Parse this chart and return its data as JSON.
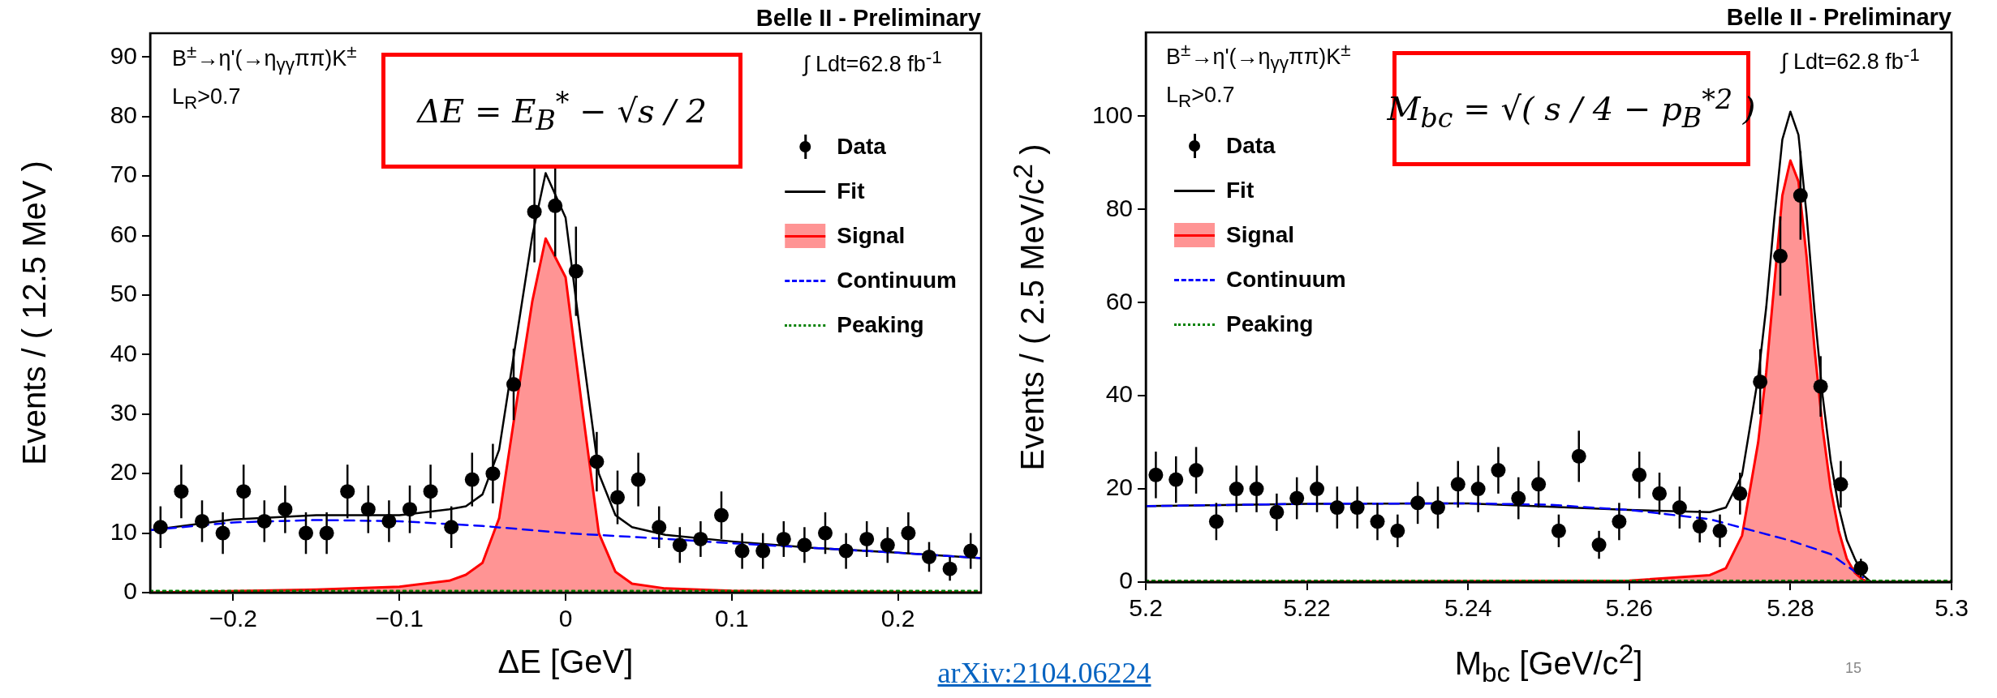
{
  "chart_data": [
    {
      "type": "line",
      "title": "Belle II - Preliminary",
      "xlabel": "ΔE [GeV]",
      "ylabel": "Events / ( 12.5 MeV )",
      "xlim": [
        -0.25,
        0.25
      ],
      "xticks": [
        {
          "value": -0.2,
          "label": "−0.2"
        },
        {
          "value": -0.1,
          "label": "−0.1"
        },
        0,
        0.1,
        0.2
      ],
      "ylim": [
        0,
        94
      ],
      "yticks": [
        0,
        10,
        20,
        30,
        40,
        50,
        60,
        70,
        80,
        90
      ],
      "legend": "top right",
      "annotations": [
        "B$^{±}$→η'(→η$_{γγ}$ππ)K$^{±}$",
        "L$_{R}$>0.7",
        "∫ Ldt=62.8 fb$^{-1}$",
        "ΔE =  E$_{B}$$^{*}$ − √s / 2",
        "arXiv:2104.06224"
      ],
      "series": [
        {
          "name": "Data",
          "type": "scatter",
          "marker": "circle",
          "color": "#000000",
          "x": [
            -0.24375,
            -0.23125,
            -0.21875,
            -0.20625,
            -0.19375,
            -0.18125,
            -0.16875,
            -0.15625,
            -0.14375,
            -0.13125,
            -0.11875,
            -0.10625,
            -0.09375,
            -0.08125,
            -0.06875,
            -0.05625,
            -0.04375,
            -0.03125,
            -0.01875,
            -0.00625,
            0.00625,
            0.01875,
            0.03125,
            0.04375,
            0.05625,
            0.06875,
            0.08125,
            0.09375,
            0.10625,
            0.11875,
            0.13125,
            0.14375,
            0.15625,
            0.16875,
            0.18125,
            0.19375,
            0.20625,
            0.21875,
            0.23125,
            0.24375
          ],
          "values": [
            11,
            17,
            12,
            10,
            17,
            12,
            14,
            10,
            10,
            17,
            14,
            12,
            14,
            17,
            11,
            19,
            20,
            35,
            64,
            65,
            54,
            22,
            16,
            19,
            11,
            8,
            9,
            13,
            7,
            7,
            9,
            8,
            10,
            7,
            9,
            8,
            10,
            6,
            4,
            7
          ],
          "errors": [
            3.5,
            4.5,
            3.5,
            3.5,
            4.5,
            3.5,
            4,
            3.5,
            3.5,
            4.5,
            4,
            3.5,
            4,
            4.5,
            3.5,
            4.5,
            5,
            6,
            8.5,
            8.5,
            7.5,
            5,
            4.5,
            4.5,
            3.5,
            3,
            3,
            4,
            3,
            3,
            3,
            3,
            3.5,
            3,
            3,
            3,
            3.5,
            2.5,
            2,
            3
          ]
        },
        {
          "name": "Fit",
          "type": "line",
          "color": "#000000",
          "x": [
            -0.25,
            -0.2,
            -0.15,
            -0.1,
            -0.07,
            -0.06,
            -0.05,
            -0.04,
            -0.03,
            -0.02,
            -0.012,
            0,
            0.01,
            0.02,
            0.03,
            0.04,
            0.06,
            0.1,
            0.15,
            0.2,
            0.25
          ],
          "values": [
            10.5,
            12.3,
            13,
            13,
            14,
            14.5,
            16.5,
            24,
            42,
            60,
            70.5,
            63,
            41,
            20,
            13,
            11,
            9.7,
            8.6,
            7.5,
            6.7,
            5.8
          ]
        },
        {
          "name": "Signal",
          "type": "area",
          "color": "#ff0000",
          "x": [
            -0.25,
            -0.15,
            -0.1,
            -0.07,
            -0.06,
            -0.05,
            -0.04,
            -0.03,
            -0.02,
            -0.012,
            0,
            0.01,
            0.02,
            0.03,
            0.04,
            0.06,
            0.1,
            0.25
          ],
          "values": [
            0,
            0.5,
            1,
            2,
            3,
            5,
            12.5,
            31,
            49,
            59.5,
            53,
            31,
            10,
            3.5,
            1.5,
            0.7,
            0.3,
            0
          ]
        },
        {
          "name": "Continuum",
          "type": "line",
          "line_style": "dashed",
          "color": "#0000ff",
          "x": [
            -0.25,
            -0.2,
            -0.15,
            -0.1,
            -0.05,
            0,
            0.05,
            0.1,
            0.15,
            0.2,
            0.25
          ],
          "values": [
            10.5,
            11.8,
            12.2,
            12,
            11.2,
            10,
            9.2,
            8.3,
            7.5,
            6.7,
            5.8
          ]
        },
        {
          "name": "Peaking",
          "type": "line",
          "line_style": "dotted",
          "color": "#008000",
          "x": [
            -0.25,
            0.25
          ],
          "values": [
            0.3,
            0.3
          ]
        }
      ]
    },
    {
      "type": "line",
      "title": "Belle II - Preliminary",
      "xlabel": "M$_{bc}$ [GeV/c$^{2}$]",
      "ylabel": "Events / ( 2.5 MeV/c$^{2}$ )",
      "xlim": [
        5.2,
        5.3
      ],
      "xticks": [
        5.2,
        5.22,
        5.24,
        5.26,
        5.28,
        5.3
      ],
      "ylim": [
        0,
        118
      ],
      "yticks": [
        0,
        20,
        40,
        60,
        80,
        100
      ],
      "legend": "top left",
      "annotations": [
        "B$^{±}$→η'(→η$_{γγ}$ππ)K$^{±}$",
        "L$_{R}$>0.7",
        "∫ Ldt=62.8 fb$^{-1}$",
        "M$_{bc}$ = √( s / 4 −  p$_{B}$$^{*2}$ )",
        "15"
      ],
      "series": [
        {
          "name": "Data",
          "type": "scatter",
          "marker": "circle",
          "color": "#000000",
          "x": [
            5.20125,
            5.20375,
            5.20625,
            5.20875,
            5.21125,
            5.21375,
            5.21625,
            5.21875,
            5.22125,
            5.22375,
            5.22625,
            5.22875,
            5.23125,
            5.23375,
            5.23625,
            5.23875,
            5.24125,
            5.24375,
            5.24625,
            5.24875,
            5.25125,
            5.25375,
            5.25625,
            5.25875,
            5.26125,
            5.26375,
            5.26625,
            5.26875,
            5.27125,
            5.27375,
            5.27625,
            5.27875,
            5.28125,
            5.28375,
            5.28625,
            5.28875
          ],
          "values": [
            23,
            22,
            24,
            13,
            20,
            20,
            15,
            18,
            20,
            16,
            16,
            13,
            11,
            17,
            16,
            21,
            20,
            24,
            18,
            21,
            11,
            27,
            8,
            13,
            23,
            19,
            16,
            12,
            11,
            19,
            43,
            70,
            83,
            42,
            21,
            3
          ],
          "errors": [
            5,
            5,
            5,
            4,
            5,
            5,
            4,
            4.5,
            5,
            4.5,
            4.5,
            4,
            3.5,
            4.5,
            4.5,
            5,
            5,
            5,
            4.5,
            5,
            3.5,
            5.5,
            3,
            4,
            5,
            4.5,
            4.5,
            3.5,
            3.5,
            4.5,
            7,
            8.5,
            9.5,
            6.5,
            5,
            2
          ]
        },
        {
          "name": "Fit",
          "type": "line",
          "color": "#000000",
          "x": [
            5.2,
            5.22,
            5.24,
            5.26,
            5.27,
            5.272,
            5.274,
            5.276,
            5.277,
            5.278,
            5.279,
            5.28,
            5.281,
            5.282,
            5.283,
            5.284,
            5.285,
            5.286,
            5.287,
            5.288,
            5.289,
            5.29,
            5.3
          ],
          "values": [
            16.3,
            16.8,
            16.9,
            15.5,
            15,
            16,
            23,
            44,
            59,
            78,
            95,
            101,
            96,
            79,
            58,
            40,
            26,
            16,
            9,
            5,
            1.5,
            0,
            0
          ]
        },
        {
          "name": "Signal",
          "type": "area",
          "color": "#ff0000",
          "x": [
            5.2,
            5.26,
            5.27,
            5.272,
            5.274,
            5.276,
            5.277,
            5.278,
            5.279,
            5.28,
            5.281,
            5.282,
            5.283,
            5.284,
            5.285,
            5.286,
            5.287,
            5.288,
            5.289,
            5.29,
            5.3
          ],
          "values": [
            0,
            0.3,
            1.5,
            3,
            10,
            30,
            45,
            64,
            83,
            90.5,
            86,
            70,
            50,
            33,
            20,
            11,
            5,
            2,
            0.5,
            0,
            0
          ]
        },
        {
          "name": "Continuum",
          "type": "line",
          "line_style": "dashed",
          "color": "#0000ff",
          "x": [
            5.2,
            5.22,
            5.24,
            5.25,
            5.26,
            5.27,
            5.28,
            5.285,
            5.289
          ],
          "values": [
            16.3,
            16.8,
            16.9,
            16.6,
            15.5,
            13.5,
            8.9,
            6,
            1
          ]
        },
        {
          "name": "Peaking",
          "type": "line",
          "line_style": "dotted",
          "color": "#008000",
          "x": [
            5.2,
            5.3
          ],
          "values": [
            0.3,
            0.3
          ]
        }
      ]
    }
  ]
}
